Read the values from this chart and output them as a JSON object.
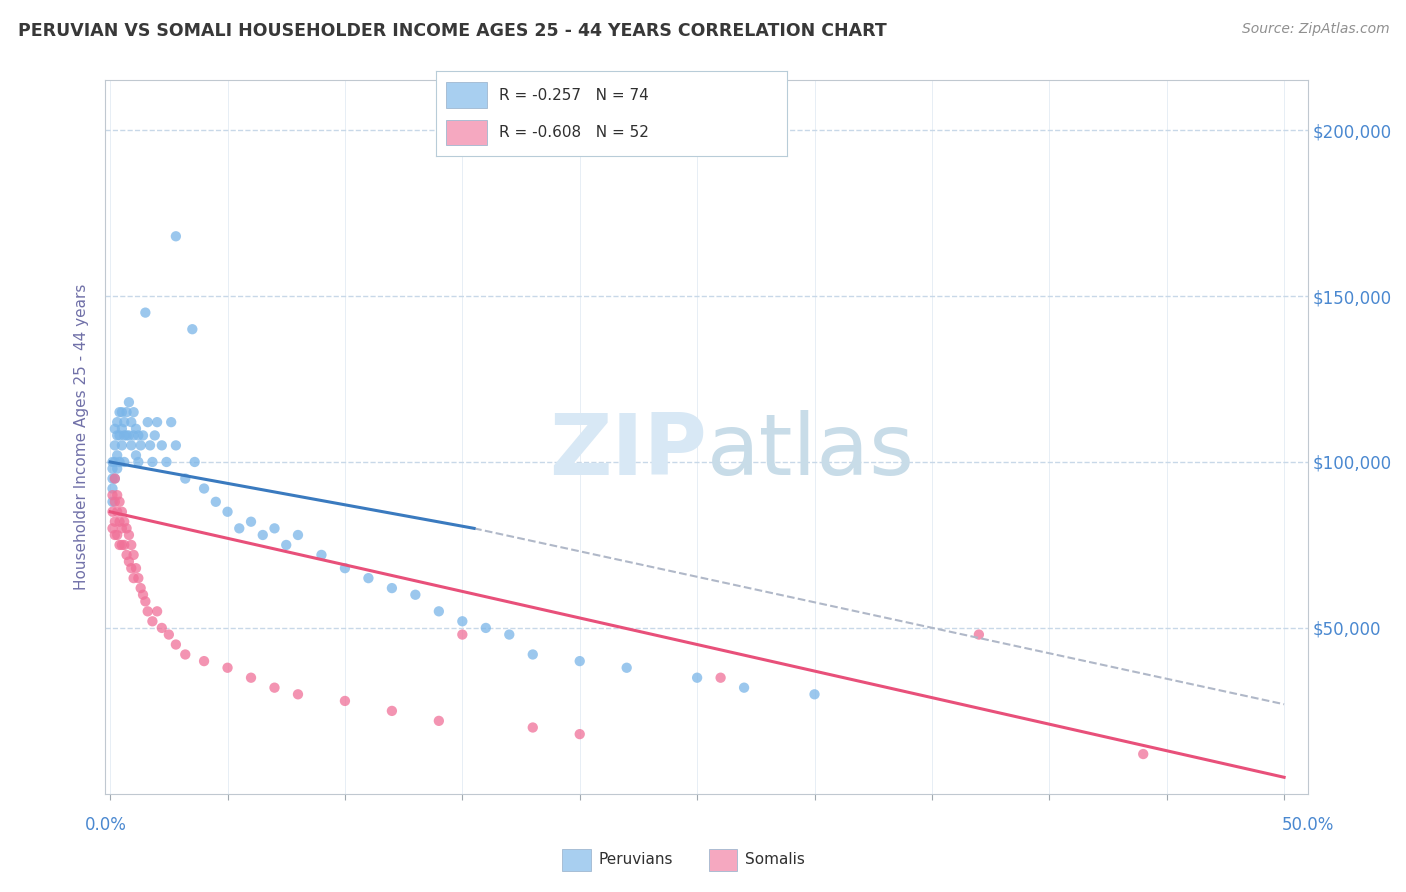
{
  "title": "PERUVIAN VS SOMALI HOUSEHOLDER INCOME AGES 25 - 44 YEARS CORRELATION CHART",
  "source": "Source: ZipAtlas.com",
  "ylabel": "Householder Income Ages 25 - 44 years",
  "ytick_labels": [
    "$200,000",
    "$150,000",
    "$100,000",
    "$50,000"
  ],
  "ytick_values": [
    200000,
    150000,
    100000,
    50000
  ],
  "ylim": [
    0,
    215000
  ],
  "xlim": [
    -0.002,
    0.51
  ],
  "legend_entries": [
    {
      "label": "R = -0.257   N = 74",
      "color": "#a8cff0"
    },
    {
      "label": "R = -0.608   N = 52",
      "color": "#f5a8c0"
    }
  ],
  "legend_bottom": [
    "Peruvians",
    "Somalis"
  ],
  "legend_bottom_colors": [
    "#a8cff0",
    "#f5a8c0"
  ],
  "peruvian_color": "#7ab5e8",
  "somali_color": "#f07098",
  "trendline_peruvian_color": "#3a7abf",
  "trendline_somali_color": "#e8507a",
  "dashed_line_color": "#b0b8c8",
  "background_color": "#ffffff",
  "grid_color": "#c8d8e8",
  "watermark_color": "#d8e8f5",
  "peruvian_x": [
    0.001,
    0.001,
    0.001,
    0.001,
    0.001,
    0.002,
    0.002,
    0.002,
    0.002,
    0.003,
    0.003,
    0.003,
    0.003,
    0.004,
    0.004,
    0.004,
    0.005,
    0.005,
    0.005,
    0.006,
    0.006,
    0.006,
    0.007,
    0.007,
    0.008,
    0.008,
    0.009,
    0.009,
    0.01,
    0.01,
    0.011,
    0.011,
    0.012,
    0.012,
    0.013,
    0.014,
    0.015,
    0.016,
    0.017,
    0.018,
    0.019,
    0.02,
    0.022,
    0.024,
    0.026,
    0.028,
    0.032,
    0.036,
    0.04,
    0.045,
    0.05,
    0.055,
    0.06,
    0.065,
    0.07,
    0.075,
    0.08,
    0.09,
    0.1,
    0.11,
    0.12,
    0.13,
    0.14,
    0.15,
    0.16,
    0.17,
    0.18,
    0.2,
    0.22,
    0.25,
    0.27,
    0.3,
    0.028,
    0.035
  ],
  "peruvian_y": [
    100000,
    98000,
    95000,
    92000,
    88000,
    110000,
    105000,
    100000,
    95000,
    112000,
    108000,
    102000,
    98000,
    115000,
    108000,
    100000,
    115000,
    110000,
    105000,
    112000,
    108000,
    100000,
    115000,
    108000,
    118000,
    108000,
    112000,
    105000,
    115000,
    108000,
    110000,
    102000,
    108000,
    100000,
    105000,
    108000,
    145000,
    112000,
    105000,
    100000,
    108000,
    112000,
    105000,
    100000,
    112000,
    105000,
    95000,
    100000,
    92000,
    88000,
    85000,
    80000,
    82000,
    78000,
    80000,
    75000,
    78000,
    72000,
    68000,
    65000,
    62000,
    60000,
    55000,
    52000,
    50000,
    48000,
    42000,
    40000,
    38000,
    35000,
    32000,
    30000,
    168000,
    140000
  ],
  "somali_x": [
    0.001,
    0.001,
    0.001,
    0.002,
    0.002,
    0.002,
    0.002,
    0.003,
    0.003,
    0.003,
    0.004,
    0.004,
    0.004,
    0.005,
    0.005,
    0.005,
    0.006,
    0.006,
    0.007,
    0.007,
    0.008,
    0.008,
    0.009,
    0.009,
    0.01,
    0.01,
    0.011,
    0.012,
    0.013,
    0.014,
    0.015,
    0.016,
    0.018,
    0.02,
    0.022,
    0.025,
    0.028,
    0.032,
    0.04,
    0.05,
    0.06,
    0.07,
    0.08,
    0.1,
    0.12,
    0.14,
    0.15,
    0.18,
    0.2,
    0.37,
    0.44,
    0.26
  ],
  "somali_y": [
    90000,
    85000,
    80000,
    95000,
    88000,
    82000,
    78000,
    90000,
    85000,
    78000,
    88000,
    82000,
    75000,
    85000,
    80000,
    75000,
    82000,
    75000,
    80000,
    72000,
    78000,
    70000,
    75000,
    68000,
    72000,
    65000,
    68000,
    65000,
    62000,
    60000,
    58000,
    55000,
    52000,
    55000,
    50000,
    48000,
    45000,
    42000,
    40000,
    38000,
    35000,
    32000,
    30000,
    28000,
    25000,
    22000,
    48000,
    20000,
    18000,
    48000,
    12000,
    35000
  ],
  "peruvian_trend_x": [
    0.0,
    0.155
  ],
  "peruvian_trend_y": [
    100000,
    80000
  ],
  "somali_trend_x": [
    0.0,
    0.5
  ],
  "somali_trend_y": [
    85000,
    5000
  ],
  "dashed_trend_x": [
    0.155,
    0.5
  ],
  "dashed_trend_y": [
    80000,
    27000
  ]
}
